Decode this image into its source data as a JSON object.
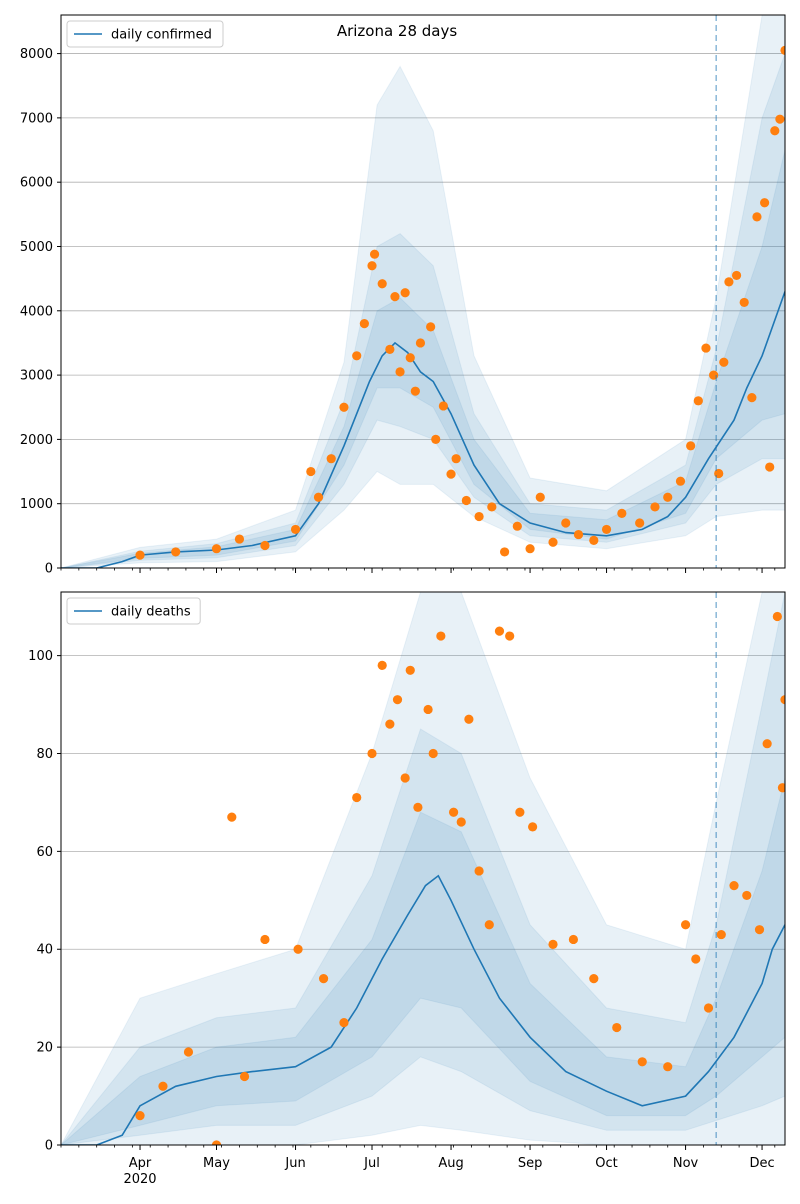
{
  "figure": {
    "title": "Arizona 28 days",
    "x_tick_labels": [
      "Apr",
      "May",
      "Jun",
      "Jul",
      "Aug",
      "Sep",
      "Oct",
      "Nov",
      "Dec"
    ],
    "x_year_label": "2020",
    "colors": {
      "line": "#1f77b4",
      "points": "#ff7f0e",
      "band": "#1f77b4",
      "grid": "#b0b0b0",
      "forecast_line": "#1f77b4"
    }
  },
  "chart_data": [
    {
      "type": "line",
      "panel": "top",
      "title": "Arizona 28 days",
      "legend": {
        "label": "daily confirmed",
        "placement": "upper-left"
      },
      "x_axis": {
        "type": "date",
        "range": [
          "2020-03-01",
          "2020-12-10"
        ],
        "ticks": [
          "2020-04-01",
          "2020-05-01",
          "2020-06-01",
          "2020-07-01",
          "2020-08-01",
          "2020-09-01",
          "2020-10-01",
          "2020-11-01",
          "2020-12-01"
        ]
      },
      "ylim": [
        0,
        8600
      ],
      "yticks": [
        0,
        1000,
        2000,
        3000,
        4000,
        5000,
        6000,
        7000,
        8000
      ],
      "grid": "horizontal",
      "forecast_start": "2020-11-13",
      "series": [
        {
          "name": "daily confirmed",
          "kind": "line",
          "x": [
            "2020-03-01",
            "2020-03-15",
            "2020-03-25",
            "2020-04-01",
            "2020-04-15",
            "2020-05-01",
            "2020-05-15",
            "2020-06-01",
            "2020-06-10",
            "2020-06-20",
            "2020-06-30",
            "2020-07-05",
            "2020-07-10",
            "2020-07-15",
            "2020-07-20",
            "2020-07-25",
            "2020-08-01",
            "2020-08-10",
            "2020-08-20",
            "2020-09-01",
            "2020-09-15",
            "2020-10-01",
            "2020-10-15",
            "2020-10-25",
            "2020-11-01",
            "2020-11-10",
            "2020-11-20",
            "2020-11-25",
            "2020-12-01",
            "2020-12-10"
          ],
          "y": [
            0,
            0,
            100,
            200,
            250,
            280,
            350,
            500,
            1000,
            1900,
            2900,
            3300,
            3500,
            3350,
            3050,
            2900,
            2400,
            1600,
            1000,
            700,
            550,
            500,
            600,
            800,
            1100,
            1700,
            2300,
            2800,
            3300,
            4300
          ]
        },
        {
          "name": "",
          "kind": "scatter",
          "x": [
            "2020-04-01",
            "2020-04-15",
            "2020-05-01",
            "2020-05-10",
            "2020-05-20",
            "2020-06-01",
            "2020-06-07",
            "2020-06-10",
            "2020-06-15",
            "2020-06-20",
            "2020-06-25",
            "2020-06-28",
            "2020-07-01",
            "2020-07-02",
            "2020-07-05",
            "2020-07-08",
            "2020-07-10",
            "2020-07-12",
            "2020-07-14",
            "2020-07-16",
            "2020-07-18",
            "2020-07-20",
            "2020-07-24",
            "2020-07-26",
            "2020-07-29",
            "2020-08-01",
            "2020-08-03",
            "2020-08-07",
            "2020-08-12",
            "2020-08-17",
            "2020-08-22",
            "2020-08-27",
            "2020-09-01",
            "2020-09-05",
            "2020-09-10",
            "2020-09-15",
            "2020-09-20",
            "2020-09-26",
            "2020-10-01",
            "2020-10-07",
            "2020-10-14",
            "2020-10-20",
            "2020-10-25",
            "2020-10-30",
            "2020-11-03",
            "2020-11-06",
            "2020-11-09",
            "2020-11-12",
            "2020-11-14",
            "2020-11-16",
            "2020-11-18",
            "2020-11-21",
            "2020-11-24",
            "2020-11-27",
            "2020-11-29",
            "2020-12-02",
            "2020-12-04",
            "2020-12-06",
            "2020-12-08",
            "2020-12-10"
          ],
          "y": [
            200,
            250,
            300,
            450,
            350,
            600,
            1500,
            1100,
            1700,
            2500,
            3300,
            3800,
            4700,
            4880,
            4420,
            3400,
            4220,
            3050,
            4280,
            3270,
            2750,
            3500,
            3750,
            2000,
            2520,
            1460,
            1700,
            1050,
            800,
            950,
            250,
            650,
            300,
            1100,
            400,
            700,
            520,
            430,
            600,
            850,
            700,
            950,
            1100,
            1350,
            1900,
            2600,
            3420,
            3000,
            1470,
            3200,
            4450,
            4550,
            4130,
            2650,
            5460,
            5680,
            1570,
            6800,
            6980,
            8050
          ]
        }
      ],
      "bands": [
        {
          "name": "",
          "x": [
            "2020-03-01",
            "2020-04-01",
            "2020-05-01",
            "2020-06-01",
            "2020-06-20",
            "2020-07-03",
            "2020-07-12",
            "2020-07-25",
            "2020-08-10",
            "2020-09-01",
            "2020-10-01",
            "2020-11-01",
            "2020-11-13",
            "2020-12-01",
            "2020-12-10"
          ],
          "low": [
            0,
            80,
            100,
            250,
            900,
            1500,
            1300,
            1300,
            800,
            400,
            300,
            500,
            800,
            900,
            900
          ],
          "high": [
            0,
            320,
            450,
            900,
            3200,
            7200,
            7800,
            6800,
            3300,
            1400,
            1200,
            2000,
            4200,
            8600,
            8600
          ]
        },
        {
          "name": "",
          "x": [
            "2020-03-01",
            "2020-04-01",
            "2020-05-01",
            "2020-06-01",
            "2020-06-20",
            "2020-07-03",
            "2020-07-12",
            "2020-07-25",
            "2020-08-10",
            "2020-09-01",
            "2020-10-01",
            "2020-11-01",
            "2020-11-13",
            "2020-12-01",
            "2020-12-10"
          ],
          "low": [
            0,
            120,
            160,
            350,
            1300,
            2300,
            2200,
            2000,
            1100,
            500,
            400,
            700,
            1300,
            1700,
            1700
          ],
          "high": [
            0,
            260,
            380,
            700,
            2600,
            5000,
            5200,
            4700,
            2400,
            1000,
            900,
            1600,
            3400,
            7000,
            8000
          ]
        },
        {
          "name": "",
          "x": [
            "2020-03-01",
            "2020-04-01",
            "2020-05-01",
            "2020-06-01",
            "2020-06-20",
            "2020-07-03",
            "2020-07-12",
            "2020-07-25",
            "2020-08-10",
            "2020-09-01",
            "2020-10-01",
            "2020-11-01",
            "2020-11-13",
            "2020-12-01",
            "2020-12-10"
          ],
          "low": [
            0,
            150,
            200,
            420,
            1600,
            2800,
            2800,
            2500,
            1300,
            600,
            450,
            850,
            1700,
            2300,
            2400
          ],
          "high": [
            0,
            230,
            330,
            600,
            2200,
            4000,
            4200,
            3700,
            2000,
            850,
            750,
            1350,
            2900,
            5000,
            6500
          ]
        }
      ]
    },
    {
      "type": "line",
      "panel": "bottom",
      "legend": {
        "label": "daily deaths",
        "placement": "upper-left"
      },
      "x_axis": {
        "type": "date",
        "range": [
          "2020-03-01",
          "2020-12-10"
        ],
        "ticks": [
          "2020-04-01",
          "2020-05-01",
          "2020-06-01",
          "2020-07-01",
          "2020-08-01",
          "2020-09-01",
          "2020-10-01",
          "2020-11-01",
          "2020-12-01"
        ]
      },
      "ylim": [
        0,
        113
      ],
      "yticks": [
        0,
        20,
        40,
        60,
        80,
        100
      ],
      "grid": "horizontal",
      "forecast_start": "2020-11-13",
      "series": [
        {
          "name": "daily deaths",
          "kind": "line",
          "x": [
            "2020-03-01",
            "2020-03-15",
            "2020-03-25",
            "2020-04-01",
            "2020-04-15",
            "2020-05-01",
            "2020-05-15",
            "2020-06-01",
            "2020-06-15",
            "2020-06-25",
            "2020-07-05",
            "2020-07-15",
            "2020-07-22",
            "2020-07-27",
            "2020-08-01",
            "2020-08-10",
            "2020-08-20",
            "2020-09-01",
            "2020-09-15",
            "2020-10-01",
            "2020-10-15",
            "2020-11-01",
            "2020-11-10",
            "2020-11-20",
            "2020-11-25",
            "2020-12-01",
            "2020-12-05",
            "2020-12-10"
          ],
          "y": [
            0,
            0,
            2,
            8,
            12,
            14,
            15,
            16,
            20,
            28,
            38,
            47,
            53,
            55,
            50,
            40,
            30,
            22,
            15,
            11,
            8,
            10,
            15,
            22,
            27,
            33,
            40,
            45
          ]
        },
        {
          "name": "",
          "kind": "scatter",
          "x": [
            "2020-04-01",
            "2020-04-10",
            "2020-04-20",
            "2020-05-01",
            "2020-05-07",
            "2020-05-12",
            "2020-05-20",
            "2020-06-02",
            "2020-06-12",
            "2020-06-20",
            "2020-06-25",
            "2020-07-01",
            "2020-07-05",
            "2020-07-08",
            "2020-07-11",
            "2020-07-14",
            "2020-07-16",
            "2020-07-19",
            "2020-07-23",
            "2020-07-25",
            "2020-07-28",
            "2020-08-02",
            "2020-08-05",
            "2020-08-08",
            "2020-08-12",
            "2020-08-16",
            "2020-08-20",
            "2020-08-24",
            "2020-08-28",
            "2020-09-02",
            "2020-09-10",
            "2020-09-18",
            "2020-09-26",
            "2020-10-05",
            "2020-10-15",
            "2020-10-25",
            "2020-11-01",
            "2020-11-05",
            "2020-11-10",
            "2020-11-15",
            "2020-11-20",
            "2020-11-25",
            "2020-11-30",
            "2020-12-03",
            "2020-12-07",
            "2020-12-09",
            "2020-12-10"
          ],
          "y": [
            6,
            12,
            19,
            0,
            67,
            14,
            42,
            40,
            34,
            25,
            71,
            80,
            98,
            86,
            91,
            75,
            97,
            69,
            89,
            80,
            104,
            68,
            66,
            87,
            56,
            45,
            105,
            104,
            68,
            65,
            41,
            42,
            34,
            24,
            17,
            16,
            45,
            38,
            28,
            43,
            53,
            51,
            44,
            82,
            108,
            73,
            91
          ]
        }
      ],
      "bands": [
        {
          "name": "",
          "x": [
            "2020-03-01",
            "2020-04-01",
            "2020-05-01",
            "2020-06-01",
            "2020-07-01",
            "2020-07-20",
            "2020-08-05",
            "2020-09-01",
            "2020-10-01",
            "2020-11-01",
            "2020-11-13",
            "2020-12-01",
            "2020-12-10"
          ],
          "low": [
            0,
            0,
            0,
            0,
            2,
            4,
            3,
            1,
            0,
            0,
            0,
            0,
            0
          ],
          "high": [
            0,
            30,
            35,
            40,
            80,
            113,
            113,
            75,
            45,
            40,
            70,
            113,
            113
          ]
        },
        {
          "name": "",
          "x": [
            "2020-03-01",
            "2020-04-01",
            "2020-05-01",
            "2020-06-01",
            "2020-07-01",
            "2020-07-20",
            "2020-08-05",
            "2020-09-01",
            "2020-10-01",
            "2020-11-01",
            "2020-11-13",
            "2020-12-01",
            "2020-12-10"
          ],
          "low": [
            0,
            2,
            4,
            4,
            10,
            18,
            15,
            7,
            3,
            3,
            5,
            8,
            10
          ],
          "high": [
            0,
            20,
            26,
            28,
            55,
            85,
            80,
            45,
            28,
            25,
            45,
            90,
            113
          ]
        },
        {
          "name": "",
          "x": [
            "2020-03-01",
            "2020-04-01",
            "2020-05-01",
            "2020-06-01",
            "2020-07-01",
            "2020-07-20",
            "2020-08-05",
            "2020-09-01",
            "2020-10-01",
            "2020-11-01",
            "2020-11-13",
            "2020-12-01",
            "2020-12-10"
          ],
          "low": [
            0,
            4,
            8,
            9,
            18,
            30,
            28,
            13,
            6,
            6,
            10,
            18,
            22
          ],
          "high": [
            0,
            14,
            20,
            22,
            42,
            68,
            64,
            33,
            18,
            16,
            30,
            56,
            75
          ]
        }
      ]
    }
  ]
}
